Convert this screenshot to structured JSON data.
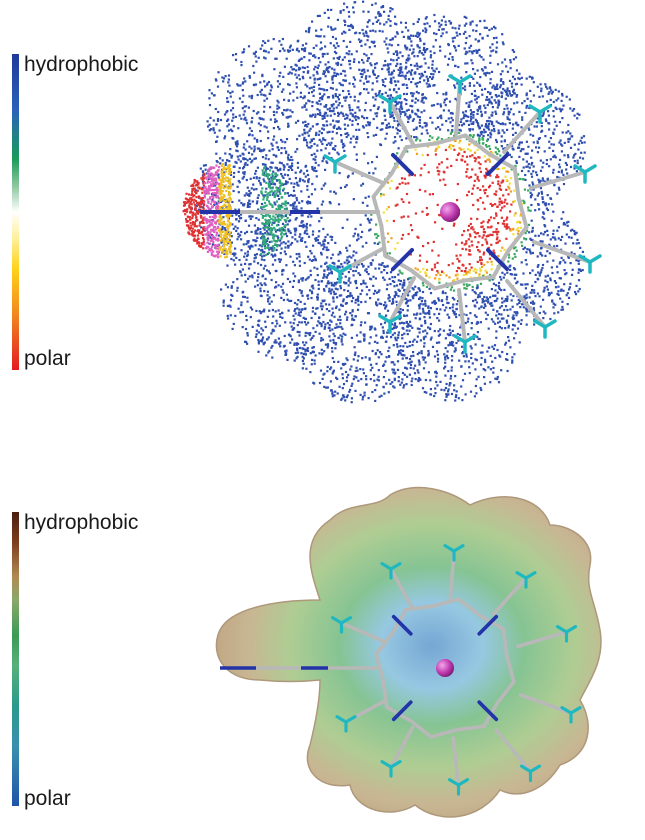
{
  "panels": [
    {
      "render_style": "dot-surface",
      "scale": {
        "top_label": "hydrophobic",
        "bottom_label": "polar",
        "colors": [
          "#1f3a9a",
          "#1a9a5a",
          "#ffffff",
          "#ffd21a",
          "#e31b23"
        ]
      }
    },
    {
      "render_style": "transparent-solid-surface",
      "scale": {
        "top_label": "hydrophobic",
        "bottom_label": "polar",
        "colors": [
          "#4a1e10",
          "#b08a54",
          "#3b9a56",
          "#2a9a8c",
          "#1f55a8"
        ]
      }
    }
  ],
  "molecule": {
    "central_atom_color": "#c03ab0",
    "nitrogen_color": "#2234a8",
    "hydrogen_color": "#1fb8c0",
    "carbon_color": "#b8b8b8"
  }
}
